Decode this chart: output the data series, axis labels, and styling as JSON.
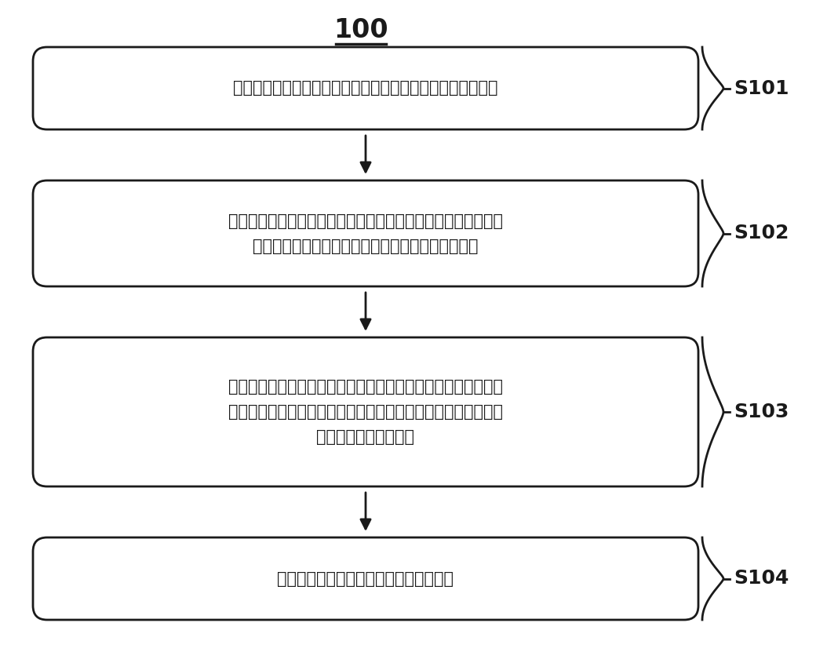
{
  "title": "100",
  "background_color": "#ffffff",
  "box_edge_color": "#1a1a1a",
  "box_fill_color": "#ffffff",
  "arrow_color": "#1a1a1a",
  "label_color": "#1a1a1a",
  "steps": [
    {
      "id": "S101",
      "lines": [
        "获取检测对象的超声心动图中反映二尖瓣结构的二维切面视频"
      ]
    },
    {
      "id": "S102",
      "lines": [
        "将所述二维切面视频输入至训练好的深度学习分类模型中，获取",
        "所述二维切面视频含有二尖瓣狭窄图像特征的预测値"
      ]
    },
    {
      "id": "S103",
      "lines": [
        "若所述预测値满足预设条件，则将该检测对象的心尖四腔心二尖",
        "瓣连续多普勒频谱切面图像输入图像分割网络模型，获取该切面",
        "图像对应的频谱波形图"
      ]
    },
    {
      "id": "S104",
      "lines": [
        "根据所述频谱波形图预测二尖瓣瓣口面积"
      ]
    }
  ]
}
